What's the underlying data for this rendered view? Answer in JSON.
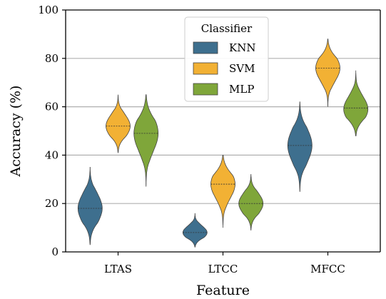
{
  "chart_data": {
    "type": "violin",
    "xlabel": "Feature",
    "ylabel": "Accuracy (%)",
    "ylim": [
      0,
      100
    ],
    "yticks": [
      0,
      20,
      40,
      60,
      80,
      100
    ],
    "grid": "horizontal",
    "categories": [
      "LTAS",
      "LTCC",
      "MFCC"
    ],
    "legend": {
      "title": "Classifier",
      "placement": "top-center"
    },
    "series": [
      {
        "name": "KNN",
        "color": "#3e6f8e",
        "violins": [
          {
            "min": 3,
            "max": 35,
            "median": 18,
            "mode": 18
          },
          {
            "min": 2,
            "max": 16,
            "median": 8,
            "mode": 8
          },
          {
            "min": 25,
            "max": 62,
            "median": 44,
            "mode": 44
          }
        ]
      },
      {
        "name": "SVM",
        "color": "#f2b134",
        "violins": [
          {
            "min": 41,
            "max": 65,
            "median": 52,
            "mode": 52
          },
          {
            "min": 10,
            "max": 40,
            "median": 28,
            "mode": 28
          },
          {
            "min": 60,
            "max": 88,
            "median": 76,
            "mode": 76
          }
        ]
      },
      {
        "name": "MLP",
        "color": "#7fa63a",
        "violins": [
          {
            "min": 27,
            "max": 65,
            "median": 49,
            "mode": 49
          },
          {
            "min": 9,
            "max": 32,
            "median": 20,
            "mode": 20
          },
          {
            "min": 48,
            "max": 75,
            "median": 59.5,
            "mode": 59
          }
        ]
      }
    ]
  }
}
